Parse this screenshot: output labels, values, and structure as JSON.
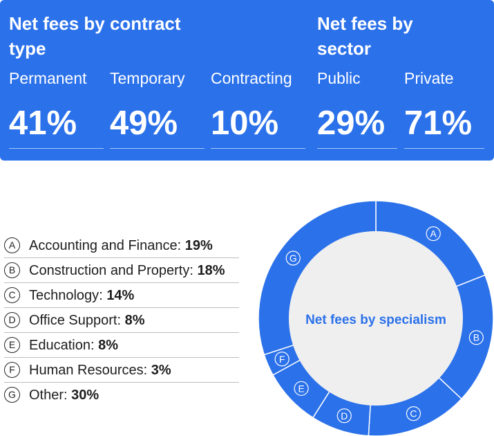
{
  "contract": {
    "title": "Net fees by contract type",
    "items": [
      {
        "label": "Permanent",
        "value": "41%"
      },
      {
        "label": "Temporary",
        "value": "49%"
      },
      {
        "label": "Contracting",
        "value": "10%"
      }
    ]
  },
  "sector": {
    "title": "Net fees by sector",
    "items": [
      {
        "label": "Public",
        "value": "29%"
      },
      {
        "label": "Private",
        "value": "71%"
      }
    ]
  },
  "chart_data": {
    "type": "pie",
    "title": "Net fees by specialism",
    "slices": [
      {
        "marker": "A",
        "label": "Accounting and Finance",
        "value": 19,
        "display": "19%"
      },
      {
        "marker": "B",
        "label": "Construction and Property",
        "value": 18,
        "display": "18%"
      },
      {
        "marker": "C",
        "label": "Technology",
        "value": 14,
        "display": "14%"
      },
      {
        "marker": "D",
        "label": "Office Support",
        "value": 8,
        "display": "8%"
      },
      {
        "marker": "E",
        "label": "Education",
        "value": 8,
        "display": "8%"
      },
      {
        "marker": "F",
        "label": "Human Resources",
        "value": 3,
        "display": "3%"
      },
      {
        "marker": "G",
        "label": "Other",
        "value": 30,
        "display": "30%"
      }
    ],
    "colors": {
      "ring": "#2b71ea",
      "center": "#efefef",
      "separator": "#ffffff",
      "center_text": "#2b71ea"
    }
  },
  "colors": {
    "panel": "#2b71ea",
    "text_dark": "#1d1d1d"
  }
}
